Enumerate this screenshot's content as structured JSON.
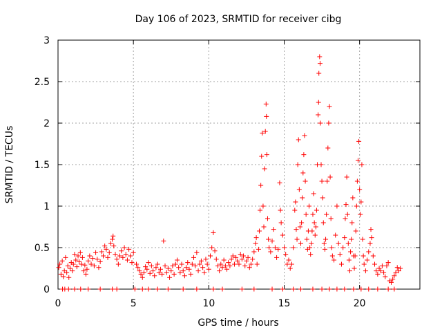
{
  "chart_data": {
    "type": "scatter",
    "title": "Day 106 of 2023, SRMTID for receiver cibg",
    "xlabel": "GPS time / hours",
    "ylabel": "SRMTID / TECUs",
    "xlim": [
      0,
      24
    ],
    "ylim": [
      0,
      3
    ],
    "x_ticks": [
      0,
      5,
      10,
      15,
      20
    ],
    "x_tick_labels": [
      "0",
      "5",
      "10",
      "15",
      "20"
    ],
    "y_ticks": [
      0,
      0.5,
      1,
      1.5,
      2,
      2.5,
      3
    ],
    "y_tick_labels": [
      "0",
      "0.5",
      "1",
      "1.5",
      "2",
      "2.5",
      "3"
    ],
    "grid": true,
    "marker": "+",
    "color": "#ff0000",
    "series": [
      {
        "name": "SRMTID",
        "points": [
          [
            0.05,
            0.26
          ],
          [
            0.12,
            0.3
          ],
          [
            0.2,
            0.18
          ],
          [
            0.28,
            0.34
          ],
          [
            0.35,
            0.15
          ],
          [
            0.42,
            0.22
          ],
          [
            0.5,
            0.38
          ],
          [
            0.58,
            0.2
          ],
          [
            0.65,
            0.28
          ],
          [
            0.72,
            0.14
          ],
          [
            0.8,
            0.25
          ],
          [
            0.88,
            0.32
          ],
          [
            0.95,
            0.22
          ],
          [
            1.02,
            0.3
          ],
          [
            1.1,
            0.42
          ],
          [
            1.18,
            0.35
          ],
          [
            1.25,
            0.27
          ],
          [
            1.33,
            0.4
          ],
          [
            1.4,
            0.33
          ],
          [
            1.48,
            0.44
          ],
          [
            1.55,
            0.3
          ],
          [
            1.62,
            0.38
          ],
          [
            1.7,
            0.22
          ],
          [
            1.78,
            0.29
          ],
          [
            1.85,
            0.18
          ],
          [
            1.92,
            0.24
          ],
          [
            2.0,
            0.34
          ],
          [
            2.1,
            0.4
          ],
          [
            2.2,
            0.3
          ],
          [
            2.3,
            0.37
          ],
          [
            2.4,
            0.28
          ],
          [
            2.5,
            0.44
          ],
          [
            2.6,
            0.36
          ],
          [
            2.7,
            0.26
          ],
          [
            2.8,
            0.33
          ],
          [
            2.9,
            0.45
          ],
          [
            3.0,
            0.4
          ],
          [
            3.1,
            0.52
          ],
          [
            3.2,
            0.48
          ],
          [
            3.3,
            0.38
          ],
          [
            3.4,
            0.44
          ],
          [
            3.5,
            0.55
          ],
          [
            3.6,
            0.6
          ],
          [
            3.65,
            0.64
          ],
          [
            3.7,
            0.52
          ],
          [
            3.8,
            0.42
          ],
          [
            3.9,
            0.36
          ],
          [
            4.0,
            0.3
          ],
          [
            4.1,
            0.4
          ],
          [
            4.2,
            0.46
          ],
          [
            4.3,
            0.38
          ],
          [
            4.4,
            0.5
          ],
          [
            4.5,
            0.42
          ],
          [
            4.6,
            0.35
          ],
          [
            4.7,
            0.48
          ],
          [
            4.8,
            0.4
          ],
          [
            4.9,
            0.32
          ],
          [
            5.0,
            0.44
          ],
          [
            5.2,
            0.3
          ],
          [
            5.3,
            0.26
          ],
          [
            5.4,
            0.22
          ],
          [
            5.5,
            0.18
          ],
          [
            5.6,
            0.14
          ],
          [
            5.7,
            0.2
          ],
          [
            5.8,
            0.27
          ],
          [
            5.9,
            0.24
          ],
          [
            6.0,
            0.32
          ],
          [
            6.1,
            0.19
          ],
          [
            6.2,
            0.28
          ],
          [
            6.3,
            0.22
          ],
          [
            6.4,
            0.16
          ],
          [
            6.5,
            0.26
          ],
          [
            6.6,
            0.3
          ],
          [
            6.7,
            0.2
          ],
          [
            6.8,
            0.24
          ],
          [
            6.9,
            0.18
          ],
          [
            7.0,
            0.58
          ],
          [
            7.1,
            0.28
          ],
          [
            7.2,
            0.2
          ],
          [
            7.3,
            0.25
          ],
          [
            7.4,
            0.14
          ],
          [
            7.5,
            0.22
          ],
          [
            7.6,
            0.28
          ],
          [
            7.7,
            0.18
          ],
          [
            7.8,
            0.3
          ],
          [
            7.9,
            0.35
          ],
          [
            8.0,
            0.26
          ],
          [
            8.1,
            0.2
          ],
          [
            8.2,
            0.3
          ],
          [
            8.3,
            0.22
          ],
          [
            8.4,
            0.16
          ],
          [
            8.5,
            0.26
          ],
          [
            8.6,
            0.32
          ],
          [
            8.7,
            0.24
          ],
          [
            8.8,
            0.18
          ],
          [
            8.9,
            0.3
          ],
          [
            9.0,
            0.38
          ],
          [
            9.1,
            0.28
          ],
          [
            9.2,
            0.44
          ],
          [
            9.3,
            0.22
          ],
          [
            9.4,
            0.3
          ],
          [
            9.5,
            0.34
          ],
          [
            9.6,
            0.26
          ],
          [
            9.7,
            0.2
          ],
          [
            9.8,
            0.36
          ],
          [
            9.9,
            0.3
          ],
          [
            10.0,
            0.24
          ],
          [
            10.1,
            0.4
          ],
          [
            10.2,
            0.5
          ],
          [
            10.3,
            0.68
          ],
          [
            10.4,
            0.46
          ],
          [
            10.5,
            0.36
          ],
          [
            10.6,
            0.28
          ],
          [
            10.7,
            0.22
          ],
          [
            10.8,
            0.3
          ],
          [
            10.9,
            0.26
          ],
          [
            11.0,
            0.35
          ],
          [
            11.1,
            0.28
          ],
          [
            11.2,
            0.24
          ],
          [
            11.3,
            0.32
          ],
          [
            11.4,
            0.28
          ],
          [
            11.5,
            0.36
          ],
          [
            11.6,
            0.4
          ],
          [
            11.7,
            0.3
          ],
          [
            11.8,
            0.38
          ],
          [
            11.9,
            0.34
          ],
          [
            12.0,
            0.3
          ],
          [
            12.1,
            0.42
          ],
          [
            12.2,
            0.36
          ],
          [
            12.3,
            0.4
          ],
          [
            12.4,
            0.28
          ],
          [
            12.5,
            0.34
          ],
          [
            12.6,
            0.38
          ],
          [
            12.7,
            0.26
          ],
          [
            12.8,
            0.3
          ],
          [
            12.9,
            0.36
          ],
          [
            13.0,
            0.45
          ],
          [
            13.1,
            0.55
          ],
          [
            13.15,
            0.62
          ],
          [
            13.2,
            0.3
          ],
          [
            13.3,
            0.48
          ],
          [
            13.35,
            0.7
          ],
          [
            13.4,
            0.95
          ],
          [
            13.45,
            1.25
          ],
          [
            13.5,
            1.6
          ],
          [
            13.55,
            1.88
          ],
          [
            13.6,
            1.0
          ],
          [
            13.65,
            0.75
          ],
          [
            13.7,
            1.45
          ],
          [
            13.75,
            1.9
          ],
          [
            13.8,
            2.23
          ],
          [
            13.82,
            2.08
          ],
          [
            13.85,
            1.62
          ],
          [
            13.9,
            0.85
          ],
          [
            13.95,
            0.6
          ],
          [
            14.0,
            0.5
          ],
          [
            14.1,
            0.45
          ],
          [
            14.2,
            0.58
          ],
          [
            14.3,
            0.72
          ],
          [
            14.4,
            0.5
          ],
          [
            14.5,
            0.38
          ],
          [
            14.6,
            0.48
          ],
          [
            14.7,
            1.28
          ],
          [
            14.75,
            0.95
          ],
          [
            14.8,
            0.8
          ],
          [
            14.9,
            0.65
          ],
          [
            15.0,
            0.5
          ],
          [
            15.1,
            0.42
          ],
          [
            15.2,
            0.3
          ],
          [
            15.3,
            0.35
          ],
          [
            15.4,
            0.25
          ],
          [
            15.5,
            0.3
          ],
          [
            15.6,
            0.5
          ],
          [
            15.7,
            0.95
          ],
          [
            15.75,
            1.05
          ],
          [
            15.8,
            0.72
          ],
          [
            15.85,
            0.6
          ],
          [
            15.9,
            1.5
          ],
          [
            15.95,
            1.8
          ],
          [
            16.0,
            1.2
          ],
          [
            16.05,
            0.75
          ],
          [
            16.1,
            0.55
          ],
          [
            16.15,
            0.8
          ],
          [
            16.2,
            1.1
          ],
          [
            16.25,
            1.4
          ],
          [
            16.3,
            1.62
          ],
          [
            16.35,
            1.85
          ],
          [
            16.4,
            1.3
          ],
          [
            16.45,
            0.9
          ],
          [
            16.5,
            0.6
          ],
          [
            16.55,
            0.48
          ],
          [
            16.6,
            0.7
          ],
          [
            16.65,
            1.0
          ],
          [
            16.7,
            0.5
          ],
          [
            16.75,
            0.42
          ],
          [
            16.8,
            0.55
          ],
          [
            16.85,
            0.7
          ],
          [
            16.9,
            0.9
          ],
          [
            16.95,
            1.15
          ],
          [
            17.0,
            0.8
          ],
          [
            17.05,
            0.65
          ],
          [
            17.1,
            0.75
          ],
          [
            17.15,
            0.95
          ],
          [
            17.2,
            1.5
          ],
          [
            17.25,
            2.1
          ],
          [
            17.28,
            2.25
          ],
          [
            17.3,
            2.6
          ],
          [
            17.35,
            2.8
          ],
          [
            17.38,
            2.72
          ],
          [
            17.4,
            2.0
          ],
          [
            17.45,
            1.5
          ],
          [
            17.5,
            1.3
          ],
          [
            17.55,
            1.1
          ],
          [
            17.6,
            0.8
          ],
          [
            17.65,
            0.55
          ],
          [
            17.7,
            0.48
          ],
          [
            17.75,
            0.6
          ],
          [
            17.8,
            0.9
          ],
          [
            17.85,
            1.3
          ],
          [
            17.9,
            1.7
          ],
          [
            17.95,
            2.0
          ],
          [
            18.0,
            2.2
          ],
          [
            18.05,
            1.35
          ],
          [
            18.1,
            0.85
          ],
          [
            18.15,
            0.5
          ],
          [
            18.2,
            0.4
          ],
          [
            18.3,
            0.35
          ],
          [
            18.4,
            0.65
          ],
          [
            18.5,
            1.0
          ],
          [
            18.6,
            0.55
          ],
          [
            18.7,
            0.42
          ],
          [
            18.8,
            0.3
          ],
          [
            18.9,
            0.5
          ],
          [
            19.0,
            0.62
          ],
          [
            19.05,
            0.85
          ],
          [
            19.1,
            1.02
          ],
          [
            19.15,
            1.35
          ],
          [
            19.2,
            0.9
          ],
          [
            19.25,
            0.55
          ],
          [
            19.3,
            0.35
          ],
          [
            19.35,
            0.22
          ],
          [
            19.4,
            0.45
          ],
          [
            19.45,
            0.6
          ],
          [
            19.5,
            0.8
          ],
          [
            19.55,
            1.1
          ],
          [
            19.6,
            0.4
          ],
          [
            19.65,
            0.25
          ],
          [
            19.7,
            0.4
          ],
          [
            19.75,
            0.7
          ],
          [
            19.8,
            1.0
          ],
          [
            19.85,
            1.3
          ],
          [
            19.9,
            1.55
          ],
          [
            19.95,
            1.78
          ],
          [
            20.0,
            1.2
          ],
          [
            20.05,
            0.9
          ],
          [
            20.1,
            1.05
          ],
          [
            20.15,
            1.5
          ],
          [
            20.2,
            0.6
          ],
          [
            20.25,
            0.4
          ],
          [
            20.3,
            0.3
          ],
          [
            20.4,
            0.22
          ],
          [
            20.5,
            0.35
          ],
          [
            20.6,
            0.45
          ],
          [
            20.7,
            0.55
          ],
          [
            20.75,
            0.72
          ],
          [
            20.8,
            0.62
          ],
          [
            20.9,
            0.4
          ],
          [
            21.0,
            0.3
          ],
          [
            21.1,
            0.22
          ],
          [
            21.2,
            0.18
          ],
          [
            21.3,
            0.25
          ],
          [
            21.4,
            0.22
          ],
          [
            21.5,
            0.28
          ],
          [
            21.6,
            0.2
          ],
          [
            21.7,
            0.15
          ],
          [
            21.8,
            0.28
          ],
          [
            21.9,
            0.32
          ],
          [
            22.0,
            0.1
          ],
          [
            22.1,
            0.08
          ],
          [
            22.2,
            0.12
          ],
          [
            22.3,
            0.16
          ],
          [
            22.4,
            0.2
          ],
          [
            22.5,
            0.26
          ],
          [
            22.6,
            0.22
          ],
          [
            22.7,
            0.25
          ],
          [
            0.3,
            0.0
          ],
          [
            0.45,
            0.0
          ],
          [
            0.7,
            0.0
          ],
          [
            1.1,
            0.0
          ],
          [
            1.5,
            0.0
          ],
          [
            2.0,
            0.0
          ],
          [
            2.8,
            0.0
          ],
          [
            3.6,
            0.0
          ],
          [
            3.9,
            0.0
          ],
          [
            5.1,
            0.0
          ],
          [
            5.6,
            0.0
          ],
          [
            6.0,
            0.0
          ],
          [
            6.6,
            0.0
          ],
          [
            7.3,
            0.0
          ],
          [
            8.3,
            0.0
          ],
          [
            9.2,
            0.0
          ],
          [
            10.3,
            0.0
          ],
          [
            10.9,
            0.0
          ],
          [
            12.2,
            0.0
          ],
          [
            13.0,
            0.0
          ],
          [
            14.2,
            0.0
          ],
          [
            14.9,
            0.0
          ],
          [
            15.6,
            0.0
          ],
          [
            16.1,
            0.0
          ],
          [
            16.9,
            0.0
          ],
          [
            17.5,
            0.0
          ],
          [
            18.0,
            0.0
          ],
          [
            18.5,
            0.0
          ],
          [
            19.0,
            0.0
          ],
          [
            19.6,
            0.0
          ],
          [
            20.1,
            0.0
          ],
          [
            20.6,
            0.0
          ],
          [
            21.2,
            0.0
          ],
          [
            21.9,
            0.0
          ],
          [
            22.3,
            0.0
          ]
        ]
      }
    ]
  }
}
